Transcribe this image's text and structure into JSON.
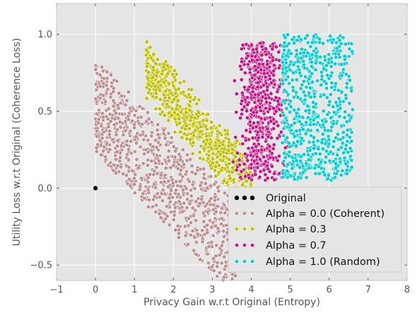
{
  "chart_data": {
    "type": "scatter",
    "xlabel": "Privacy Gain w.r.t Original  (Entropy)",
    "ylabel": "Utility Loss w.r.t Original (Coherence Loss)",
    "xlim": [
      -1,
      8
    ],
    "ylim": [
      -0.6,
      1.2
    ],
    "xticks": [
      -1,
      0,
      1,
      2,
      3,
      4,
      5,
      6,
      7,
      8
    ],
    "yticks": [
      -0.5,
      0.0,
      0.5,
      1.0
    ],
    "xtick_labels": [
      "−1",
      "0",
      "1",
      "2",
      "3",
      "4",
      "5",
      "6",
      "7",
      "8"
    ],
    "ytick_labels": [
      "−0.5",
      "0.0",
      "0.5",
      "1.0"
    ],
    "grid": true,
    "legend_position": "bottom-right",
    "series": [
      {
        "name": "Original",
        "color": "#000000",
        "points": [
          [
            0.0,
            0.0
          ]
        ]
      },
      {
        "name": "Alpha = 0.0 (Coherent)",
        "color": "#bc8f8f",
        "distribution": {
          "x_range": [
            0.0,
            3.6
          ],
          "y_top_at_x0": 0.85,
          "y_top_slope": -0.26,
          "y_spread": 0.62,
          "count": 900
        }
      },
      {
        "name": "Alpha = 0.3",
        "color": "#bfbf00",
        "distribution": {
          "x_range": [
            1.3,
            4.0
          ],
          "y_center_at_x0": 1.13,
          "y_center_slope": -0.28,
          "y_spread": 0.22,
          "count": 700
        }
      },
      {
        "name": "Alpha = 0.7",
        "color": "#c71585",
        "distribution": {
          "x_range": [
            3.4,
            5.1
          ],
          "y_range": [
            0.05,
            0.95
          ],
          "count": 650
        }
      },
      {
        "name": "Alpha = 1.0 (Random)",
        "color": "#00ced1",
        "distribution": {
          "x_range": [
            4.8,
            6.6
          ],
          "y_range": [
            0.05,
            1.0
          ],
          "count": 700
        }
      }
    ]
  }
}
